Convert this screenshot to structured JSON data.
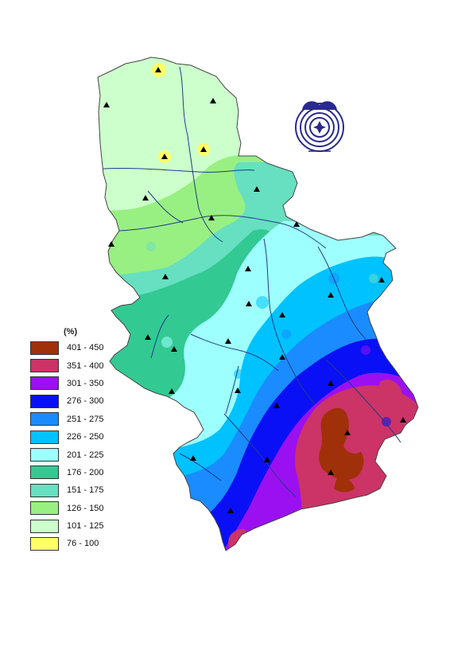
{
  "legend": {
    "title": "(%)",
    "items": [
      {
        "label": "401 - 450",
        "color": "#a0300a"
      },
      {
        "label": "351 - 400",
        "color": "#cc3366"
      },
      {
        "label": "301 - 350",
        "color": "#9b10f0"
      },
      {
        "label": "276 - 300",
        "color": "#0a10f5"
      },
      {
        "label": "251 - 275",
        "color": "#1a8cff"
      },
      {
        "label": "226 - 250",
        "color": "#00c2ff"
      },
      {
        "label": "201 - 225",
        "color": "#9effff"
      },
      {
        "label": "176 - 200",
        "color": "#33c993"
      },
      {
        "label": "151 - 175",
        "color": "#66e0c0"
      },
      {
        "label": "126 - 150",
        "color": "#99f082"
      },
      {
        "label": "101 - 125",
        "color": "#ccffcc"
      },
      {
        "label": "76 - 100",
        "color": "#ffff66"
      }
    ]
  },
  "colors": {
    "river": "#1f3c88",
    "border": "#444444",
    "station_marker": "#000000",
    "logo": "#2a2a8c"
  },
  "map_elements": {
    "station_marker_icon": "triangle-marker-icon",
    "logo_icon": "institute-logo-icon"
  }
}
